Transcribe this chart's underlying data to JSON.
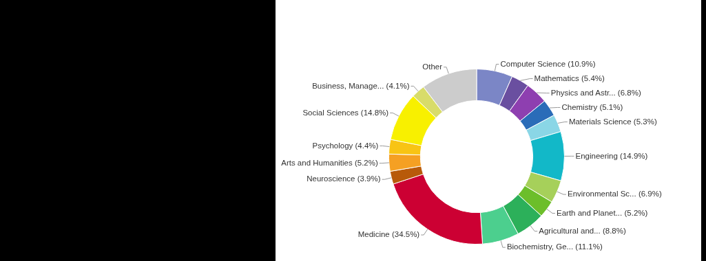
{
  "chart_data": {
    "type": "donut",
    "categories": [
      "Computer Science",
      "Mathematics",
      "Physics and Astr...",
      "Chemistry",
      "Materials Science",
      "Engineering",
      "Environmental Sc...",
      "Earth and Planet...",
      "Agricultural and...",
      "Biochemistry, Ge...",
      "Medicine",
      "Neuroscience",
      "Arts and Humanities",
      "Psychology",
      "Social Sciences",
      "Business, Manage...",
      "Other"
    ],
    "values": [
      10.9,
      5.4,
      6.8,
      5.1,
      5.3,
      14.9,
      6.9,
      5.2,
      8.8,
      11.1,
      34.5,
      3.9,
      5.2,
      4.4,
      14.8,
      4.1,
      17
    ],
    "value_labels": [
      "(10.9%)",
      "(5.4%)",
      "(6.8%)",
      "(5.1%)",
      "(5.3%)",
      "(14.9%)",
      "(6.9%)",
      "(5.2%)",
      "(8.8%)",
      "(11.1%)",
      "(34.5%)",
      "(3.9%)",
      "(5.2%)",
      "(4.4%)",
      "(14.8%)",
      "(4.1%)",
      null
    ],
    "colors": [
      "#7b86c6",
      "#6a4fa0",
      "#8e3fb0",
      "#2a6cb8",
      "#8ad6e6",
      "#12b8c8",
      "#a6d05a",
      "#6cbe2a",
      "#2cb05a",
      "#4ccf8e",
      "#cc0033",
      "#b85a0a",
      "#f5a023",
      "#f8c414",
      "#f8f000",
      "#d8dc6a",
      "#cccccc"
    ],
    "legend": false
  }
}
